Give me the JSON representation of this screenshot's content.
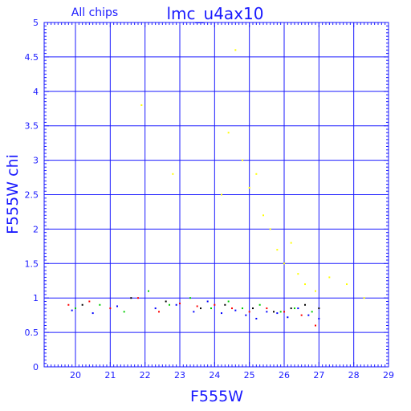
{
  "chart_data": {
    "type": "scatter",
    "title": "lmc_u4ax10",
    "subtitle": "All chips",
    "xlabel": "F555W",
    "ylabel": "F555W chi",
    "xlim": [
      19.1,
      29
    ],
    "ylim": [
      0,
      5
    ],
    "xticks": [
      20,
      21,
      22,
      23,
      24,
      25,
      26,
      27,
      28,
      29
    ],
    "yticks": [
      0,
      0.5,
      1,
      1.5,
      2,
      2.5,
      3,
      3.5,
      4,
      4.5,
      5
    ],
    "grid": true,
    "series": [
      {
        "color": "#0000ff",
        "x": [
          19.9,
          20.5,
          21.2,
          22.3,
          22.9,
          23.4,
          23.8,
          24.2,
          24.6,
          24.9,
          25.2,
          25.5,
          25.8,
          26.1,
          26.4,
          26.7,
          27.0
        ],
        "y": [
          0.82,
          0.78,
          0.88,
          0.85,
          0.9,
          0.8,
          0.95,
          0.78,
          0.82,
          0.75,
          0.7,
          0.8,
          0.78,
          0.72,
          0.85,
          0.75,
          0.7
        ]
      },
      {
        "color": "#ff0000",
        "x": [
          19.8,
          20.4,
          21.0,
          21.8,
          22.4,
          23.0,
          23.5,
          24.0,
          24.5,
          25.0,
          25.5,
          26.0,
          26.5,
          26.9
        ],
        "y": [
          0.9,
          0.95,
          0.85,
          1.0,
          0.8,
          0.92,
          0.88,
          0.9,
          0.85,
          0.8,
          0.85,
          0.8,
          0.75,
          0.6
        ]
      },
      {
        "color": "#00cc00",
        "x": [
          20.0,
          20.7,
          21.4,
          22.1,
          22.7,
          23.3,
          23.9,
          24.4,
          24.8,
          25.3,
          25.9,
          26.3,
          26.8
        ],
        "y": [
          0.85,
          0.9,
          0.8,
          1.1,
          0.9,
          1.0,
          0.85,
          0.95,
          0.85,
          0.9,
          0.8,
          0.85,
          0.8
        ]
      },
      {
        "color": "#000000",
        "x": [
          20.2,
          21.6,
          22.6,
          23.6,
          24.3,
          25.1,
          25.7,
          26.2,
          26.6,
          27.0
        ],
        "y": [
          0.9,
          1.0,
          0.95,
          0.85,
          0.9,
          0.85,
          0.8,
          0.85,
          0.9,
          0.85
        ]
      },
      {
        "color": "#ffff00",
        "x": [
          24.2,
          24.4,
          24.6,
          24.8,
          25.0,
          25.2,
          25.4,
          25.6,
          25.8,
          26.0,
          26.2,
          26.4,
          26.6,
          26.9,
          27.3,
          27.8,
          28.3,
          21.9,
          22.8
        ],
        "y": [
          2.5,
          3.4,
          4.6,
          3.0,
          2.6,
          2.8,
          2.2,
          2.0,
          1.7,
          1.5,
          1.8,
          1.35,
          1.2,
          1.1,
          1.3,
          1.2,
          1.0,
          3.8,
          2.8
        ]
      }
    ]
  }
}
